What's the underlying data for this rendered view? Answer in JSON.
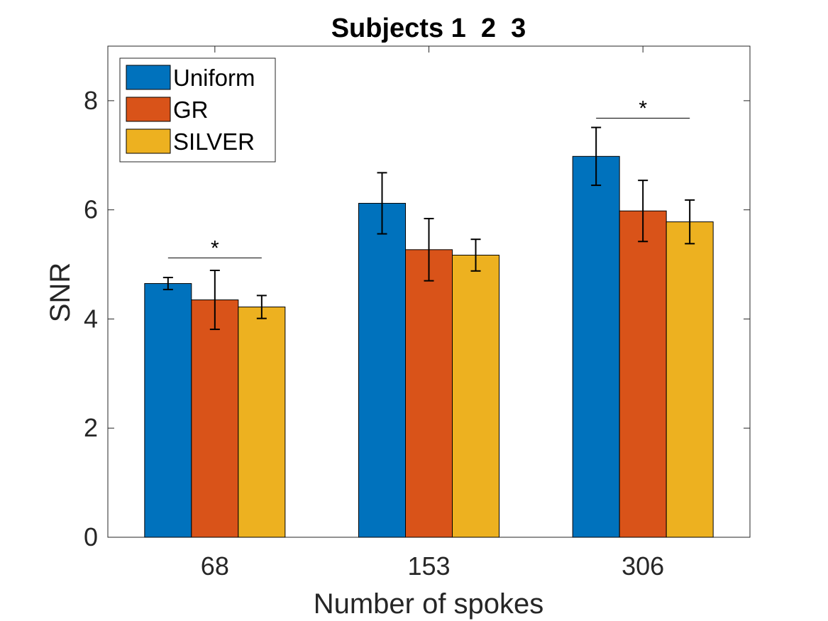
{
  "chart_data": {
    "type": "bar",
    "title": "Subjects 1  2  3",
    "xlabel": "Number of spokes",
    "ylabel": "SNR",
    "categories": [
      "68",
      "153",
      "306"
    ],
    "ylim": [
      0,
      9
    ],
    "yticks": [
      0,
      2,
      4,
      6,
      8
    ],
    "grid": false,
    "legend_position": "top-left",
    "series": [
      {
        "name": "Uniform",
        "color": "#0072BD",
        "values": [
          4.65,
          6.12,
          6.98
        ],
        "errors": [
          0.11,
          0.56,
          0.53
        ]
      },
      {
        "name": "GR",
        "color": "#D95319",
        "values": [
          4.35,
          5.27,
          5.98
        ],
        "errors": [
          0.54,
          0.57,
          0.56
        ]
      },
      {
        "name": "SILVER",
        "color": "#EDB120",
        "values": [
          4.22,
          5.17,
          5.78
        ],
        "errors": [
          0.21,
          0.29,
          0.4
        ]
      }
    ],
    "significance": [
      {
        "category": "68",
        "y": 5.12,
        "label": "*"
      },
      {
        "category": "306",
        "y": 7.68,
        "label": "*"
      }
    ]
  }
}
